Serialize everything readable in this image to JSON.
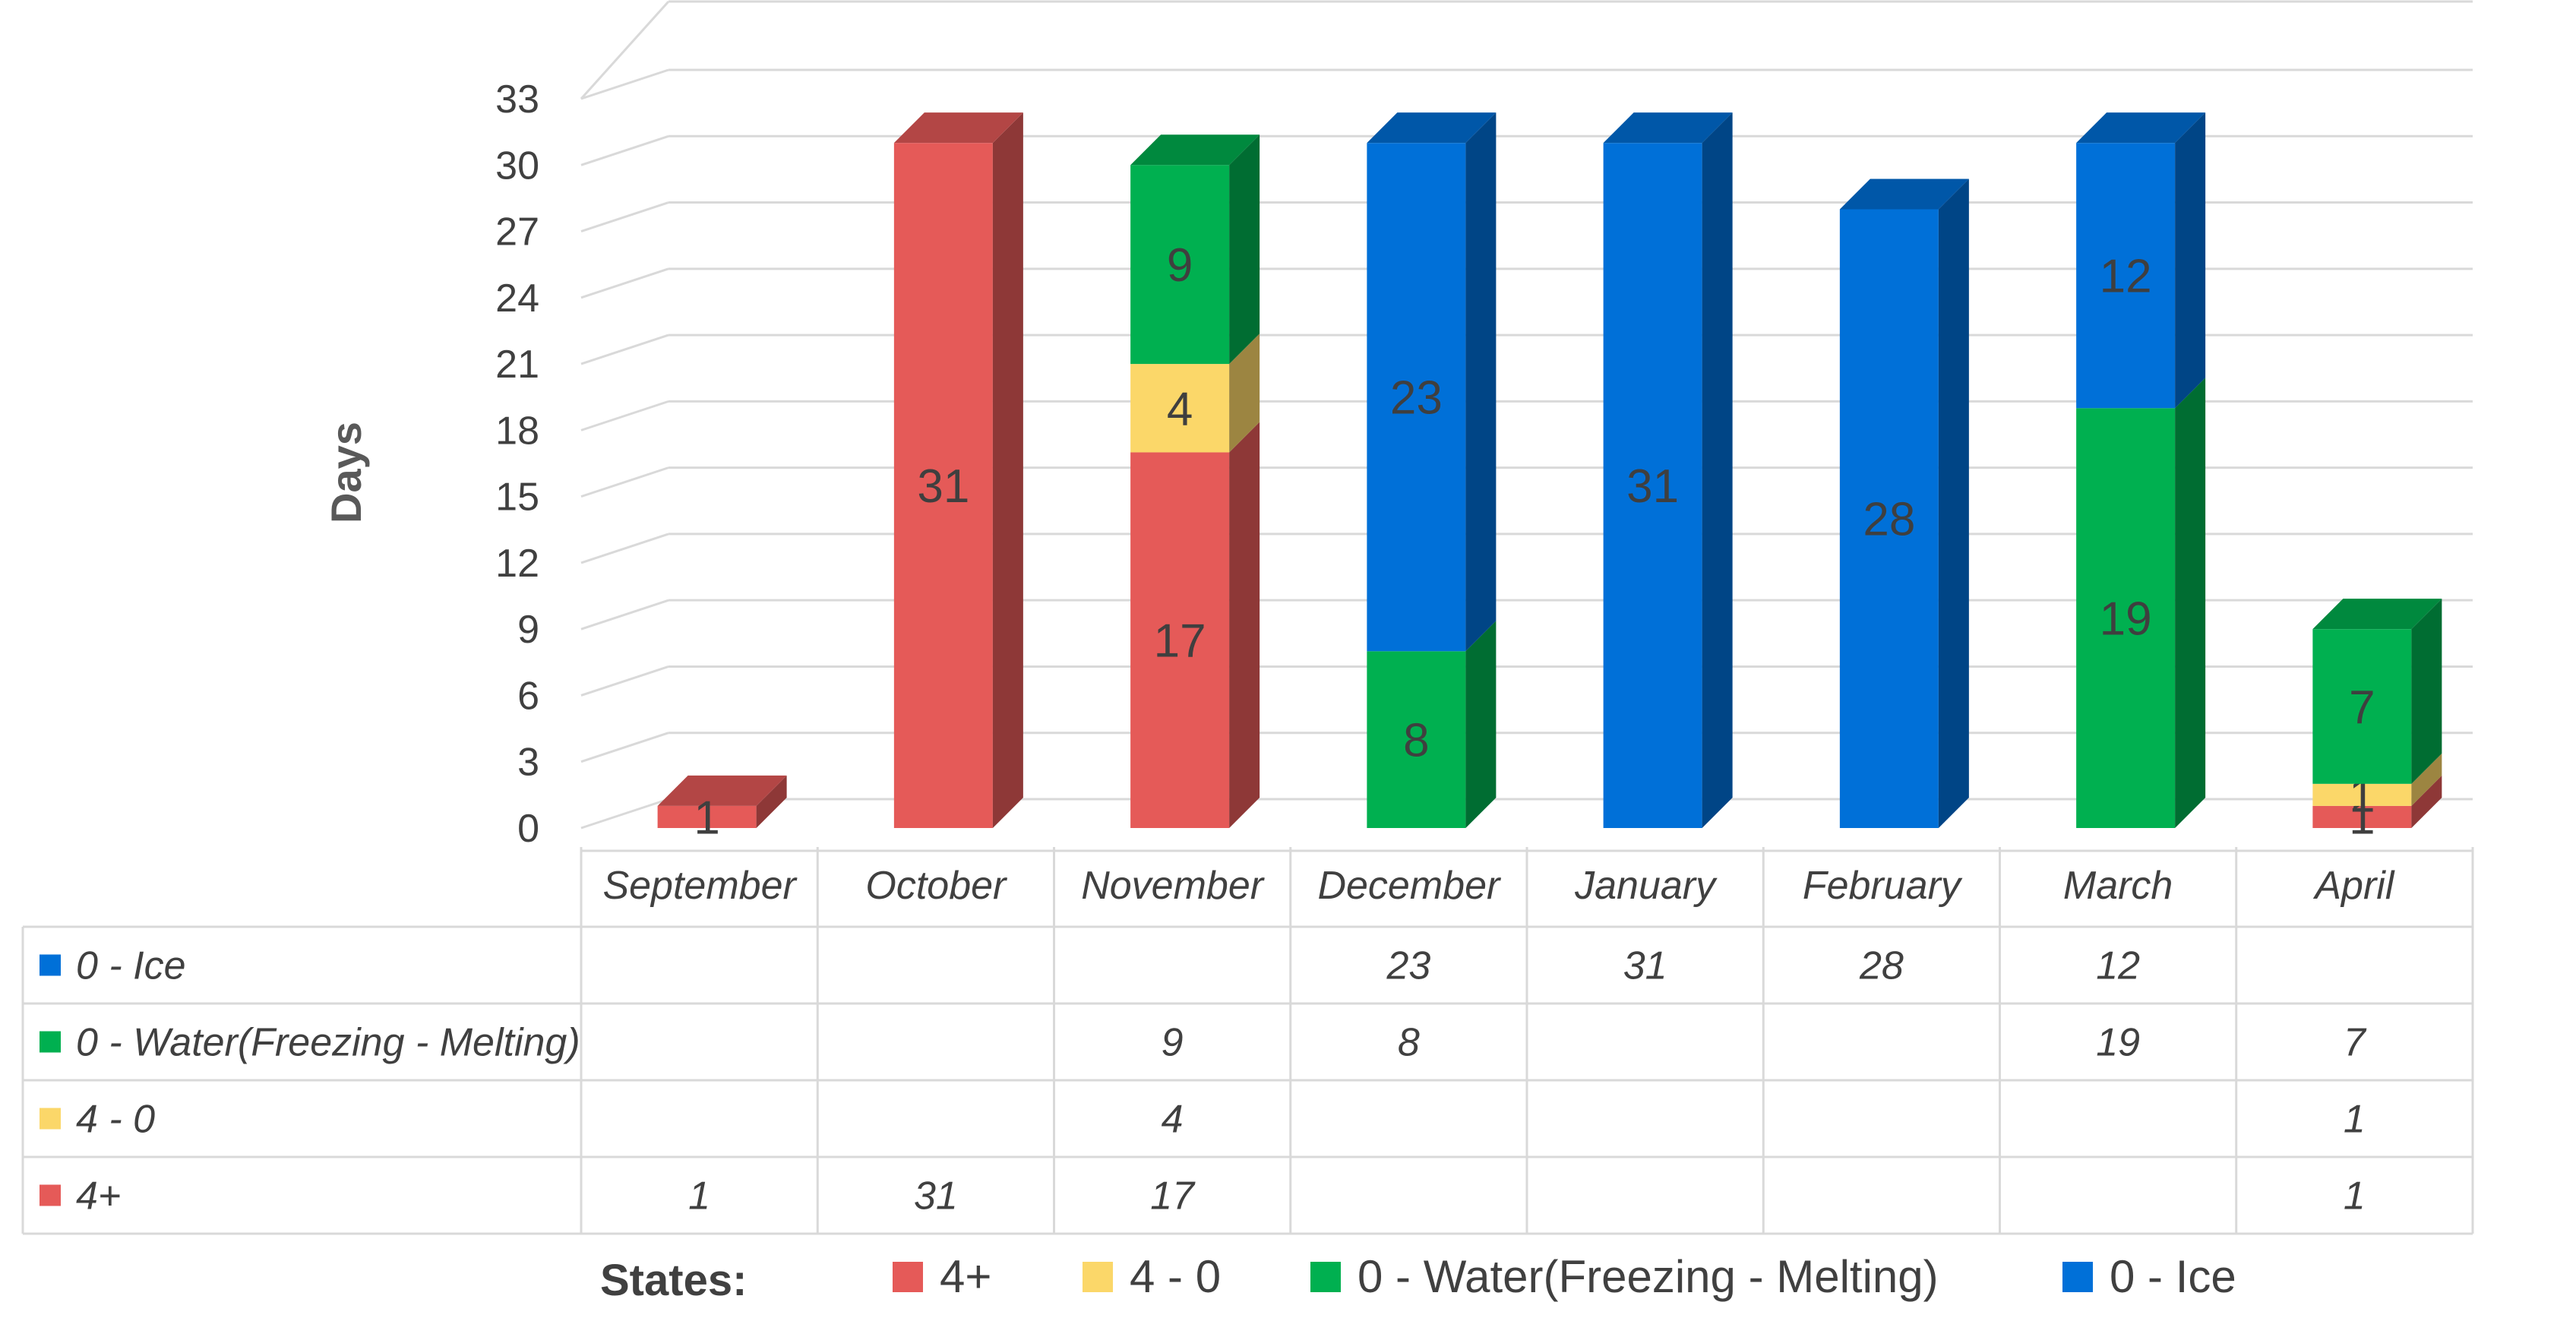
{
  "chart_data": {
    "type": "bar",
    "stacked": true,
    "style": "3d-column",
    "ylabel": "Days",
    "ylim": [
      0,
      33
    ],
    "yticks": [
      0,
      3,
      6,
      9,
      12,
      15,
      18,
      21,
      24,
      27,
      30,
      33
    ],
    "categories": [
      "September",
      "October",
      "November",
      "December",
      "January",
      "February",
      "March",
      "April"
    ],
    "series": [
      {
        "name": "4+",
        "color": "#e55a58",
        "values": [
          1,
          31,
          17,
          null,
          null,
          null,
          null,
          1
        ]
      },
      {
        "name": "4 - 0",
        "color": "#fbd769",
        "values": [
          null,
          null,
          4,
          null,
          null,
          null,
          null,
          1
        ]
      },
      {
        "name": "0 - Water(Freezing - Melting)",
        "color": "#00b050",
        "values": [
          null,
          null,
          9,
          8,
          null,
          null,
          19,
          7
        ]
      },
      {
        "name": "0 - Ice",
        "color": "#0070d8",
        "values": [
          null,
          null,
          null,
          23,
          31,
          28,
          12,
          null
        ]
      }
    ],
    "table_rows": [
      {
        "label": "0 - Ice",
        "cells": [
          "",
          "",
          "",
          "23",
          "31",
          "28",
          "12",
          ""
        ]
      },
      {
        "label": "0 - Water(Freezing - Melting)",
        "cells": [
          "",
          "",
          "9",
          "8",
          "",
          "",
          "19",
          "7"
        ]
      },
      {
        "label": "4 - 0",
        "cells": [
          "",
          "",
          "4",
          "",
          "",
          "",
          "",
          "1"
        ]
      },
      {
        "label": "4+",
        "cells": [
          "1",
          "31",
          "17",
          "",
          "",
          "",
          "",
          "1"
        ]
      }
    ],
    "legend_title": "States:",
    "legend_position": "bottom",
    "legend_items": [
      "4+",
      "4 - 0",
      "0 - Water(Freezing - Melting)",
      "0 - Ice"
    ]
  }
}
